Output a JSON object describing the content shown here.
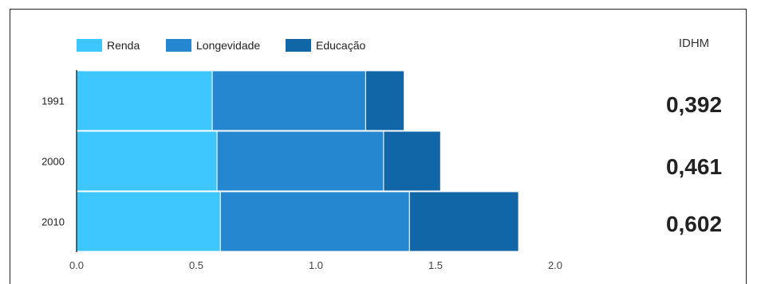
{
  "chart_data": {
    "type": "bar",
    "orientation": "horizontal",
    "stacked": true,
    "categories": [
      "1991",
      "2000",
      "2010"
    ],
    "series": [
      {
        "name": "Renda",
        "color": "#3ec6ff",
        "values": [
          0.567,
          0.587,
          0.601
        ]
      },
      {
        "name": "Longevidade",
        "color": "#2487cf",
        "values": [
          0.641,
          0.696,
          0.79
        ]
      },
      {
        "name": "Educação",
        "color": "#1166a8",
        "values": [
          0.161,
          0.238,
          0.456
        ]
      }
    ],
    "x_ticks": [
      "0.0",
      "0.5",
      "1.0",
      "1.5",
      "2.0"
    ],
    "xlim": [
      0,
      2.0
    ],
    "legend_position": "top-left",
    "grid": false
  },
  "idhm": {
    "title": "IDHM",
    "values": [
      "0,392",
      "0,461",
      "0,602"
    ]
  }
}
